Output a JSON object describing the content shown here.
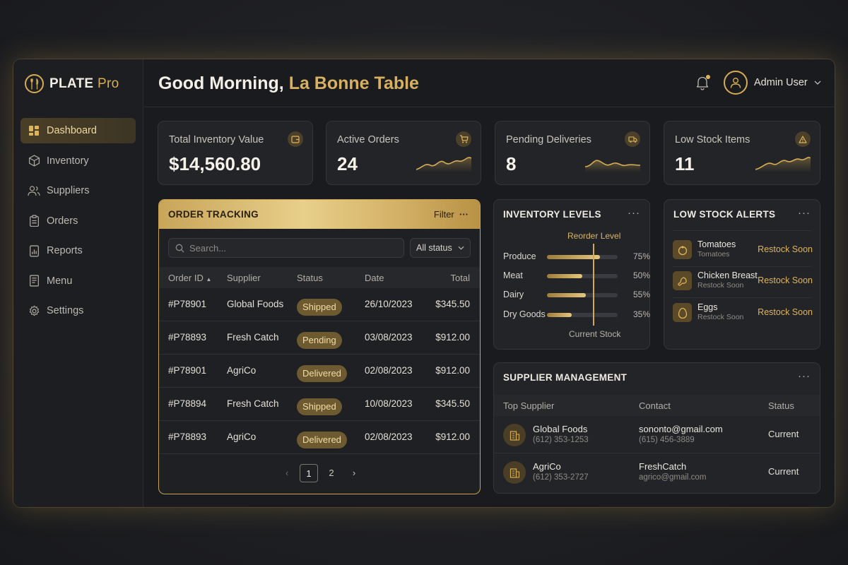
{
  "brand": {
    "name": "PLATE",
    "suffix": "Pro"
  },
  "sidebar": {
    "items": [
      {
        "label": "Dashboard",
        "icon": "dashboard-icon",
        "active": true
      },
      {
        "label": "Inventory",
        "icon": "box-icon"
      },
      {
        "label": "Suppliers",
        "icon": "users-icon"
      },
      {
        "label": "Orders",
        "icon": "clipboard-icon"
      },
      {
        "label": "Reports",
        "icon": "report-icon"
      },
      {
        "label": "Menu",
        "icon": "menu-book-icon"
      },
      {
        "label": "Settings",
        "icon": "gear-icon"
      }
    ]
  },
  "header": {
    "greeting": "Good Morning,",
    "venue": "La Bonne Table",
    "user_name": "Admin User"
  },
  "stats": [
    {
      "label": "Total Inventory Value",
      "value": "$14,560.80",
      "icon": "wallet-icon"
    },
    {
      "label": "Active Orders",
      "value": "24",
      "icon": "cart-icon"
    },
    {
      "label": "Pending Deliveries",
      "value": "8",
      "icon": "truck-icon"
    },
    {
      "label": "Low Stock Items",
      "value": "11",
      "icon": "warning-icon"
    }
  ],
  "orders": {
    "title": "ORDER TRACKING",
    "filter_label": "Filter",
    "search_placeholder": "Search...",
    "status_filter": "All status",
    "columns": {
      "id": "Order ID",
      "supplier": "Supplier",
      "status": "Status",
      "date": "Date",
      "total": "Total"
    },
    "rows": [
      {
        "id": "#P78901",
        "supplier": "Global Foods",
        "status": "Shipped",
        "date": "26/10/2023",
        "total": "$345.50"
      },
      {
        "id": "#P78893",
        "supplier": "Fresh Catch",
        "status": "Pending",
        "date": "03/08/2023",
        "total": "$912.00"
      },
      {
        "id": "#P78901",
        "supplier": "AgriCo",
        "status": "Delivered",
        "date": "02/08/2023",
        "total": "$912.00"
      },
      {
        "id": "#P78894",
        "supplier": "Fresh Catch",
        "status": "Shipped",
        "date": "10/08/2023",
        "total": "$345.50"
      },
      {
        "id": "#P78893",
        "supplier": "AgriCo",
        "status": "Delivered",
        "date": "02/08/2023",
        "total": "$912.00"
      }
    ],
    "pages": [
      "1",
      "2"
    ],
    "current_page": "1"
  },
  "inventory": {
    "title": "INVENTORY LEVELS",
    "reorder_label": "Reorder Level",
    "footer_label": "Current Stock",
    "reorder_level": 0.65,
    "items": [
      {
        "name": "Produce",
        "pct_label": "75%",
        "pct": 75
      },
      {
        "name": "Meat",
        "pct_label": "50%",
        "pct": 50
      },
      {
        "name": "Dairy",
        "pct_label": "55%",
        "pct": 55
      },
      {
        "name": "Dry Goods",
        "pct_label": "35%",
        "pct": 35
      }
    ]
  },
  "low_stock": {
    "title": "LOW STOCK ALERTS",
    "items": [
      {
        "name": "Tomatoes",
        "sub": "Tomatoes",
        "action": "Restock Soon",
        "icon": "tomato-icon"
      },
      {
        "name": "Chicken Breast",
        "sub": "Restock Soon",
        "action": "Restock Soon",
        "icon": "chicken-icon"
      },
      {
        "name": "Eggs",
        "sub": "Restock Soon",
        "action": "Restock Soon",
        "icon": "egg-icon"
      }
    ]
  },
  "suppliers": {
    "title": "SUPPLIER MANAGEMENT",
    "columns": {
      "name": "Top Supplier",
      "contact": "Contact",
      "status": "Status"
    },
    "rows": [
      {
        "name": "Global Foods",
        "phone": "(612) 353-1253",
        "contact1": "sononto@gmail.com",
        "contact2": "(615) 456-3889",
        "status": "Current"
      },
      {
        "name": "AgriCo",
        "phone": "(612) 353-2727",
        "contact1": "FreshCatch",
        "contact2": "agrico@gmail.com",
        "status": "Current"
      }
    ]
  },
  "colors": {
    "accent": "#d6ad55",
    "background": "#1a1b1e",
    "card": "#232428"
  }
}
